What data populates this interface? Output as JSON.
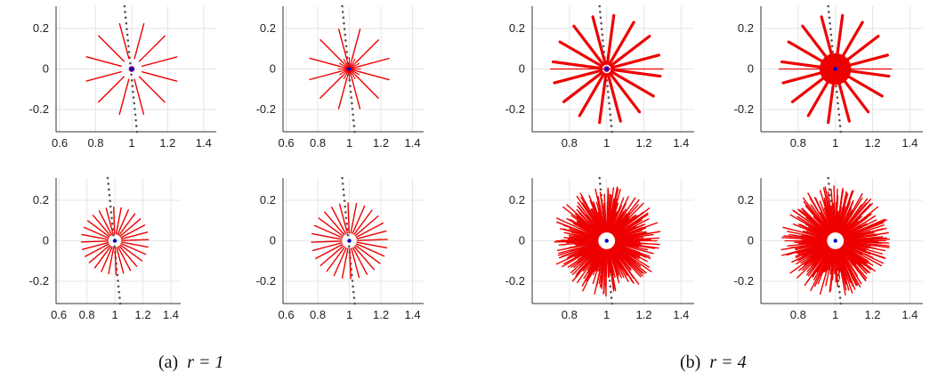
{
  "colors": {
    "rays": "#ee0000",
    "center_point": "#0000cc",
    "center_ring": "#7a0080",
    "dots": "#555555",
    "grid": "#e6e6e6",
    "axis": "#333333"
  },
  "captions": [
    {
      "label": "(a)",
      "math": "r = 1"
    },
    {
      "label": "(b)",
      "math": "r = 4"
    }
  ],
  "chart_data": [
    {
      "id": "a-top-left",
      "type": "scatter",
      "xlim": [
        0.58,
        1.47
      ],
      "ylim": [
        -0.31,
        0.31
      ],
      "xticks": [
        "0.6",
        "0.8",
        "1",
        "1.2",
        "1.4"
      ],
      "yticks": [
        "0.2",
        "0",
        "-0.2"
      ],
      "grid": true,
      "center": [
        1,
        0
      ],
      "center_marker": "ring",
      "rays": 12,
      "ray_inner": 0.06,
      "ray_outer": 0.26
    },
    {
      "id": "a-top-right",
      "type": "scatter",
      "xlim": [
        0.58,
        1.47
      ],
      "ylim": [
        -0.31,
        0.31
      ],
      "xticks": [
        "0.6",
        "0.8",
        "1",
        "1.2",
        "1.4"
      ],
      "yticks": [
        "0.2",
        "0",
        "-0.2"
      ],
      "grid": true,
      "center": [
        1,
        0
      ],
      "center_marker": "dot",
      "rays": 12,
      "ray_inner": 0.06,
      "ray_outer": 0.26,
      "inner_burst": 24
    },
    {
      "id": "a-bottom-left",
      "type": "scatter",
      "xlim": [
        0.6,
        1.47
      ],
      "ylim": [
        -0.31,
        0.31
      ],
      "xticks": [
        "0.8",
        "1",
        "1.2",
        "1.4"
      ],
      "yticks": [
        "0.2",
        "0",
        "-0.2"
      ],
      "grid": true,
      "center": [
        1,
        0
      ],
      "center_marker": "ring",
      "rays": 16,
      "ray_inner": 0.03,
      "ray_outer": 0.29,
      "thick": true
    },
    {
      "id": "a-bottom-right",
      "type": "scatter",
      "xlim": [
        0.6,
        1.47
      ],
      "ylim": [
        -0.31,
        0.31
      ],
      "xticks": [
        "0.8",
        "1",
        "1.2",
        "1.4"
      ],
      "yticks": [
        "0.2",
        "0",
        "-0.2"
      ],
      "grid": true,
      "center": [
        1,
        0
      ],
      "center_marker": "dot",
      "rays": 16,
      "ray_inner": 0.03,
      "ray_outer": 0.29,
      "thick": true,
      "filled_core": 0.05
    },
    {
      "id": "b-top-left",
      "type": "scatter",
      "xlim": [
        0.58,
        1.47
      ],
      "ylim": [
        -0.31,
        0.31
      ],
      "xticks": [
        "0.6",
        "0.8",
        "1",
        "1.2",
        "1.4"
      ],
      "yticks": [
        "0.2",
        "0",
        "-0.2"
      ],
      "grid": true,
      "center": [
        1,
        0
      ],
      "center_marker": "dot",
      "rays": 28,
      "ray_inner": 0.05,
      "ray_outer": 0.24
    },
    {
      "id": "b-top-right",
      "type": "scatter",
      "xlim": [
        0.58,
        1.47
      ],
      "ylim": [
        -0.31,
        0.31
      ],
      "xticks": [
        "0.6",
        "0.8",
        "1",
        "1.2",
        "1.4"
      ],
      "yticks": [
        "0.2",
        "0",
        "-0.2"
      ],
      "grid": true,
      "center": [
        1,
        0
      ],
      "center_marker": "dot",
      "rays": 28,
      "ray_inner": 0.05,
      "ray_outer": 0.24
    },
    {
      "id": "b-bottom-left",
      "type": "scatter",
      "xlim": [
        0.6,
        1.47
      ],
      "ylim": [
        -0.31,
        0.31
      ],
      "xticks": [
        "0.8",
        "1",
        "1.2",
        "1.4"
      ],
      "yticks": [
        "0.2",
        "0",
        "-0.2"
      ],
      "grid": true,
      "center": [
        1,
        0
      ],
      "center_marker": "dot",
      "rays": 260,
      "ray_inner": 0.04,
      "ray_outer": 0.26,
      "dense": true
    },
    {
      "id": "b-bottom-right",
      "type": "scatter",
      "xlim": [
        0.6,
        1.47
      ],
      "ylim": [
        -0.31,
        0.31
      ],
      "xticks": [
        "0.8",
        "1",
        "1.2",
        "1.4"
      ],
      "yticks": [
        "0.2",
        "0",
        "-0.2"
      ],
      "grid": true,
      "center": [
        1,
        0
      ],
      "center_marker": "dot",
      "rays": 260,
      "ray_inner": 0.04,
      "ray_outer": 0.26,
      "dense": true
    }
  ]
}
